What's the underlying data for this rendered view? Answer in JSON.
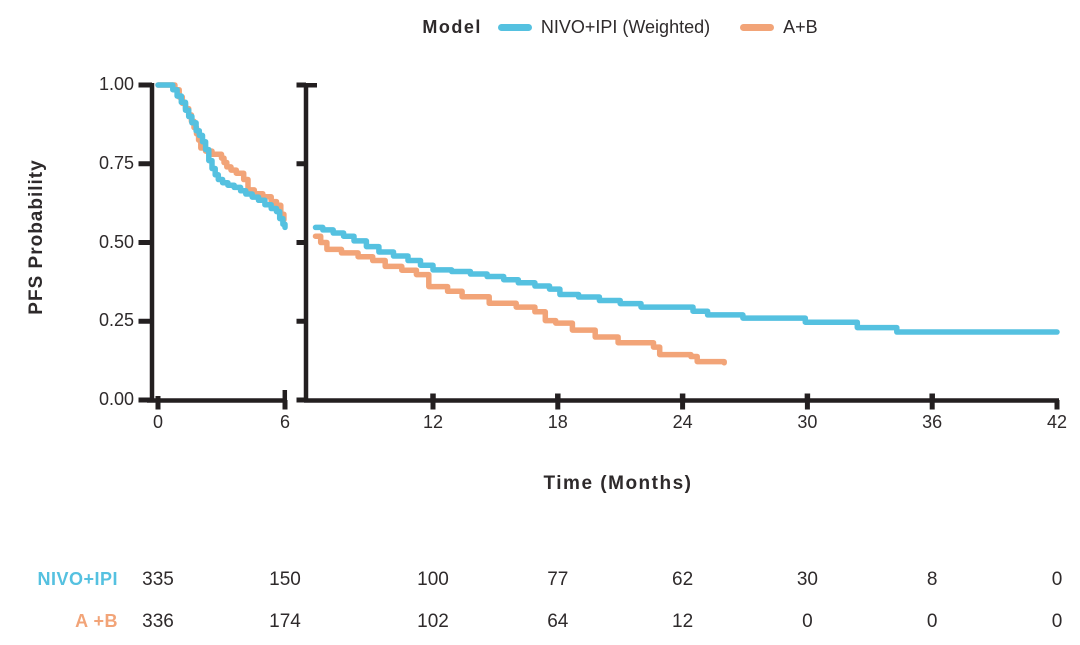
{
  "legend": {
    "title": "Model",
    "items": [
      {
        "label": "NIVO+IPI (Weighted)",
        "color": "#55c1e0"
      },
      {
        "label": "A+B",
        "color": "#f2a478"
      }
    ]
  },
  "axes": {
    "x_label": "Time (Months)",
    "y_label": "PFS Probability",
    "x_tick_labels": [
      "0",
      "6",
      "12",
      "18",
      "24",
      "30",
      "36",
      "42"
    ],
    "y_tick_labels": [
      "1.00",
      "0.75",
      "0.50",
      "0.25",
      "0.00"
    ]
  },
  "risk_table": {
    "rows": [
      {
        "label": "NIVO+IPI",
        "color": "#55c1e0",
        "counts": [
          "335",
          "150",
          "100",
          "77",
          "62",
          "30",
          "8",
          "0"
        ]
      },
      {
        "label": "A +B",
        "color": "#f2a478",
        "counts": [
          "336",
          "174",
          "102",
          "64",
          "12",
          "0",
          "0",
          "0"
        ]
      }
    ]
  },
  "chart_data": {
    "type": "line",
    "subtype": "kaplan-meier-step",
    "title": "",
    "xlabel": "Time (Months)",
    "ylabel": "PFS Probability",
    "x_ticks": [
      0,
      6,
      12,
      18,
      24,
      30,
      36,
      42
    ],
    "y_ticks": [
      1.0,
      0.75,
      0.5,
      0.25,
      0.0
    ],
    "ylim": [
      0,
      1
    ],
    "xlim": [
      0,
      42
    ],
    "x_axis_break": {
      "after": 6,
      "resume": 6.3
    },
    "grid": false,
    "legend_position": "top-center",
    "series": [
      {
        "name": "NIVO+IPI (Weighted)",
        "color": "#55c1e0",
        "segments": [
          [
            [
              0,
              1.0
            ],
            [
              0.55,
              1.0
            ],
            [
              0.7,
              0.985
            ],
            [
              0.9,
              0.965
            ],
            [
              1.1,
              0.945
            ],
            [
              1.3,
              0.92
            ],
            [
              1.45,
              0.9
            ],
            [
              1.6,
              0.88
            ],
            [
              1.8,
              0.855
            ],
            [
              1.95,
              0.84
            ],
            [
              2.1,
              0.82
            ],
            [
              2.25,
              0.795
            ],
            [
              2.4,
              0.76
            ],
            [
              2.55,
              0.735
            ],
            [
              2.7,
              0.715
            ],
            [
              2.85,
              0.7
            ],
            [
              3.05,
              0.69
            ],
            [
              3.3,
              0.682
            ],
            [
              3.6,
              0.675
            ],
            [
              3.9,
              0.664
            ],
            [
              4.15,
              0.654
            ],
            [
              4.45,
              0.644
            ],
            [
              4.75,
              0.634
            ],
            [
              5.05,
              0.62
            ],
            [
              5.35,
              0.608
            ],
            [
              5.6,
              0.598
            ],
            [
              5.75,
              0.576
            ],
            [
              5.9,
              0.558
            ],
            [
              6.0,
              0.548
            ]
          ],
          [
            [
              6.35,
              0.548
            ],
            [
              6.7,
              0.54
            ],
            [
              7.2,
              0.53
            ],
            [
              7.7,
              0.52
            ],
            [
              8.2,
              0.505
            ],
            [
              8.8,
              0.487
            ],
            [
              9.4,
              0.47
            ],
            [
              10.1,
              0.457
            ],
            [
              10.8,
              0.443
            ],
            [
              11.4,
              0.428
            ],
            [
              12.0,
              0.413
            ],
            [
              12.9,
              0.408
            ],
            [
              13.8,
              0.4
            ],
            [
              14.6,
              0.392
            ],
            [
              15.4,
              0.382
            ],
            [
              16.1,
              0.372
            ],
            [
              16.9,
              0.362
            ],
            [
              17.6,
              0.352
            ],
            [
              18.1,
              0.335
            ],
            [
              19.0,
              0.327
            ],
            [
              20.0,
              0.316
            ],
            [
              21.0,
              0.306
            ],
            [
              22.0,
              0.295
            ],
            [
              24.5,
              0.282
            ],
            [
              25.2,
              0.27
            ],
            [
              26.9,
              0.26
            ],
            [
              29.9,
              0.247
            ],
            [
              32.4,
              0.23
            ],
            [
              34.3,
              0.216
            ],
            [
              42.0,
              0.216
            ]
          ]
        ]
      },
      {
        "name": "A+B",
        "color": "#f2a478",
        "segments": [
          [
            [
              0,
              1.0
            ],
            [
              0.6,
              1.0
            ],
            [
              0.8,
              0.985
            ],
            [
              1.0,
              0.962
            ],
            [
              1.15,
              0.942
            ],
            [
              1.3,
              0.925
            ],
            [
              1.45,
              0.905
            ],
            [
              1.58,
              0.885
            ],
            [
              1.7,
              0.865
            ],
            [
              1.82,
              0.845
            ],
            [
              1.92,
              0.825
            ],
            [
              2.02,
              0.8
            ],
            [
              2.25,
              0.79
            ],
            [
              2.55,
              0.78
            ],
            [
              3.0,
              0.768
            ],
            [
              3.12,
              0.754
            ],
            [
              3.25,
              0.74
            ],
            [
              3.45,
              0.73
            ],
            [
              3.7,
              0.72
            ],
            [
              4.05,
              0.7
            ],
            [
              4.25,
              0.667
            ],
            [
              4.55,
              0.655
            ],
            [
              4.95,
              0.645
            ],
            [
              5.35,
              0.63
            ],
            [
              5.6,
              0.618
            ],
            [
              5.8,
              0.59
            ],
            [
              5.95,
              0.572
            ]
          ],
          [
            [
              6.35,
              0.52
            ],
            [
              6.6,
              0.5
            ],
            [
              6.9,
              0.478
            ],
            [
              7.6,
              0.467
            ],
            [
              8.4,
              0.455
            ],
            [
              9.1,
              0.443
            ],
            [
              9.7,
              0.424
            ],
            [
              10.5,
              0.412
            ],
            [
              11.2,
              0.398
            ],
            [
              11.8,
              0.36
            ],
            [
              12.7,
              0.345
            ],
            [
              13.4,
              0.328
            ],
            [
              14.7,
              0.307
            ],
            [
              16.0,
              0.295
            ],
            [
              16.9,
              0.28
            ],
            [
              17.4,
              0.252
            ],
            [
              17.9,
              0.244
            ],
            [
              18.7,
              0.222
            ],
            [
              19.8,
              0.2
            ],
            [
              20.9,
              0.182
            ],
            [
              22.6,
              0.168
            ],
            [
              22.9,
              0.144
            ],
            [
              24.4,
              0.138
            ],
            [
              24.7,
              0.122
            ],
            [
              26.0,
              0.118
            ]
          ]
        ]
      }
    ],
    "risk_table": {
      "time_points": [
        0,
        6,
        12,
        18,
        24,
        30,
        36,
        42
      ],
      "rows": [
        {
          "name": "NIVO+IPI",
          "counts": [
            335,
            150,
            100,
            77,
            62,
            30,
            8,
            0
          ]
        },
        {
          "name": "A+B",
          "counts": [
            336,
            174,
            102,
            64,
            12,
            0,
            0,
            0
          ]
        }
      ]
    }
  },
  "colors": {
    "axis": "#231f20",
    "text": "#2e2a2b"
  }
}
